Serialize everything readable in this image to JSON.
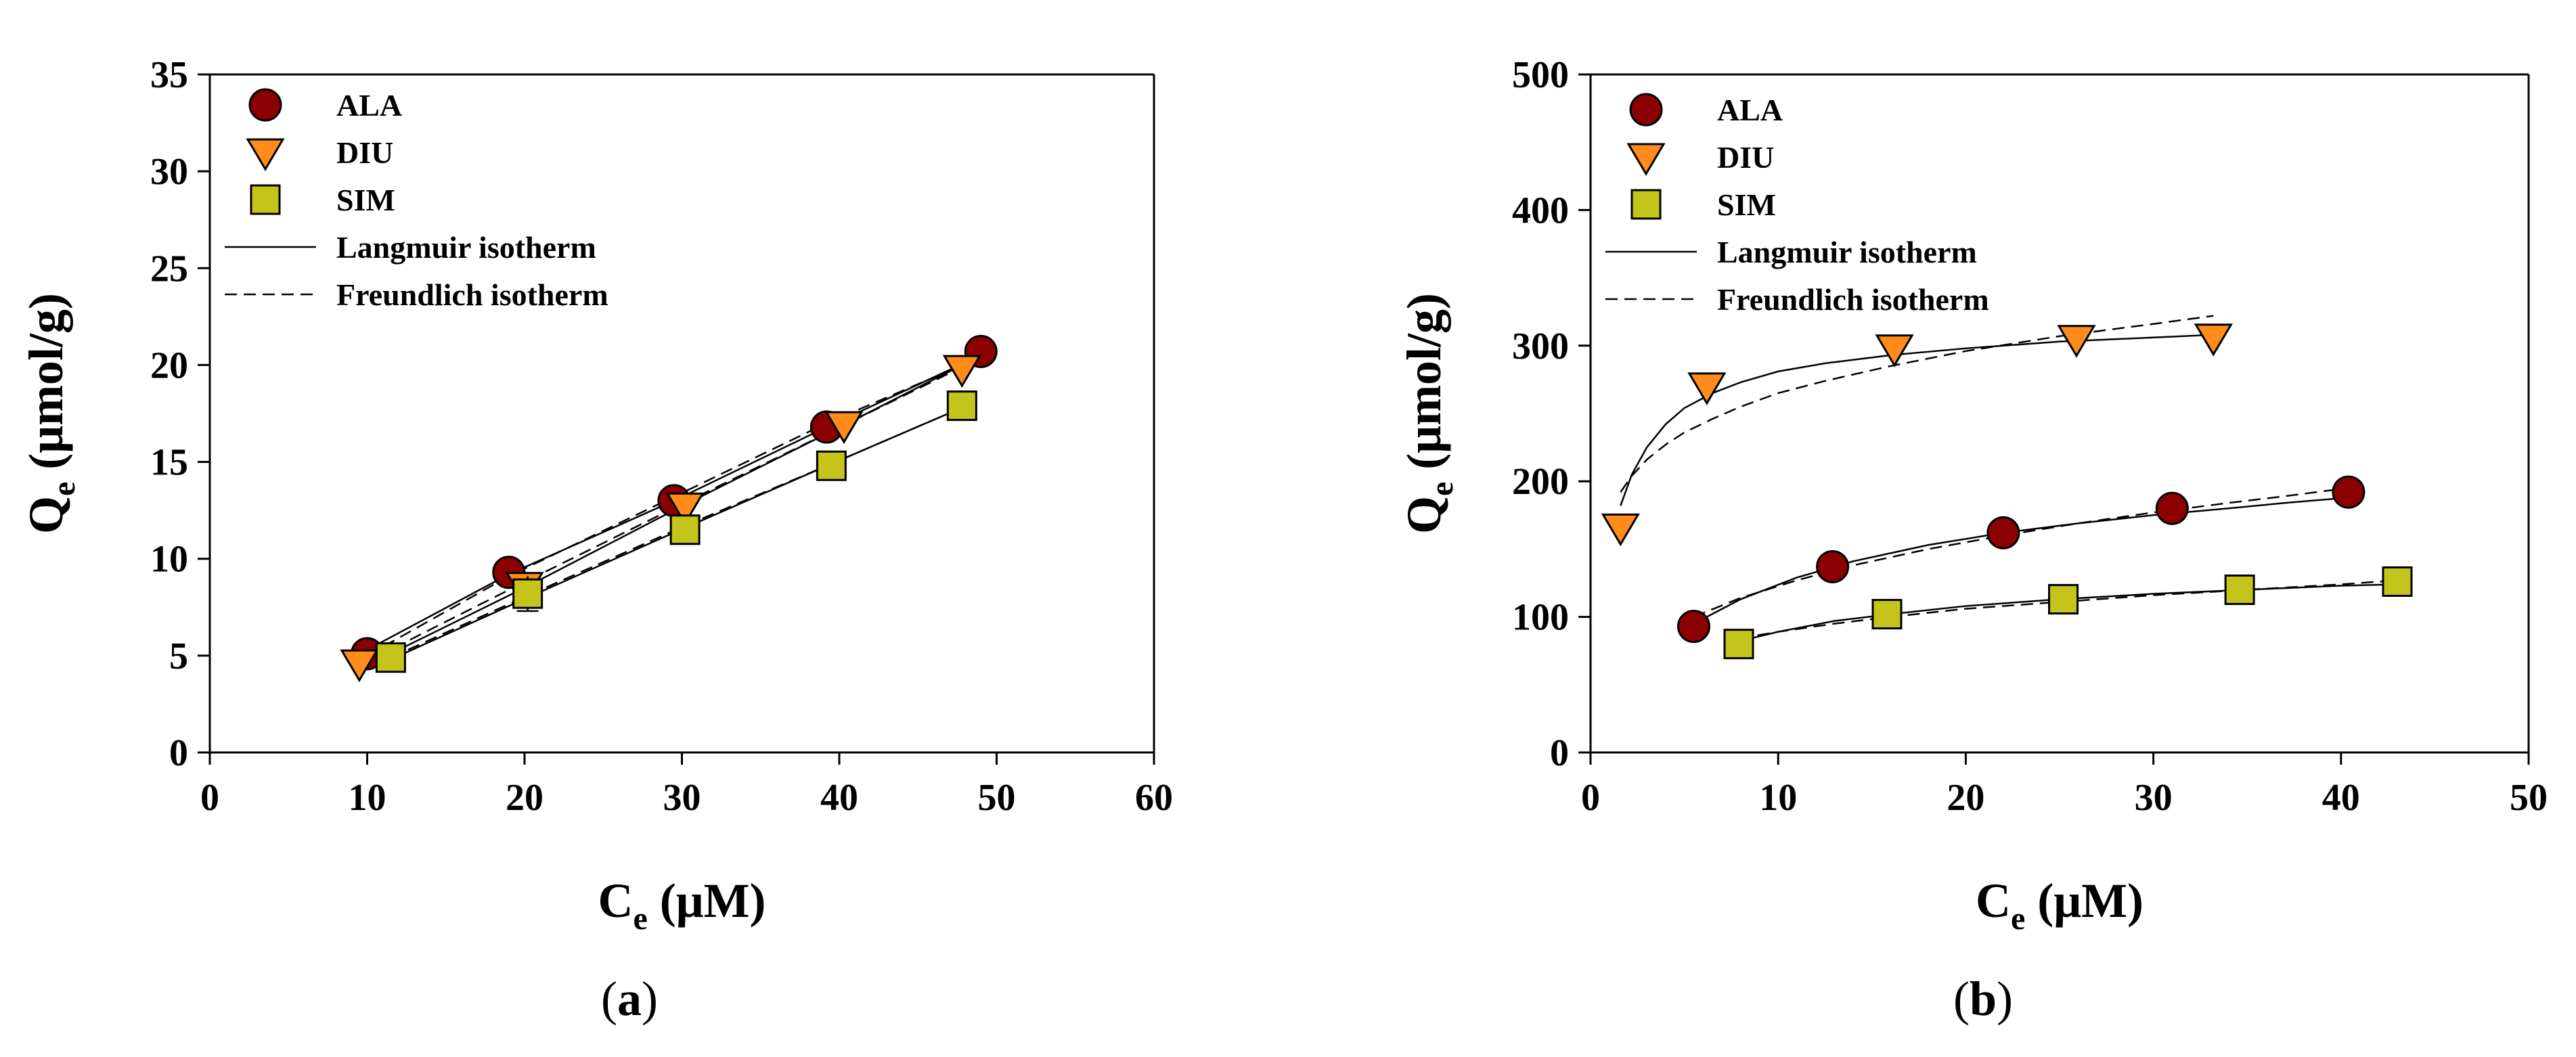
{
  "colors": {
    "ALA": "#8B0000",
    "DIU": "#FF8C1A",
    "SIM": "#C4C41A",
    "axis": "#000000"
  },
  "chart_data": [
    {
      "type": "scatter",
      "panel_label": "a",
      "xlabel": "C",
      "xlabel_sub": "e",
      "xlabel_unit": " (μM)",
      "ylabel": "Q",
      "ylabel_sub": "e",
      "ylabel_unit": " (μmol/g)",
      "xlim": [
        0,
        60
      ],
      "ylim": [
        0,
        35
      ],
      "xticks": [
        0,
        10,
        20,
        30,
        40,
        50,
        60
      ],
      "yticks": [
        0,
        5,
        10,
        15,
        20,
        25,
        30,
        35
      ],
      "grid": false,
      "legend_position": "top-left",
      "series": [
        {
          "name": "ALA",
          "marker": "circle",
          "x": [
            10,
            19,
            29.5,
            39.2,
            49
          ],
          "y": [
            5.1,
            9.3,
            13.0,
            16.8,
            20.7
          ],
          "langmuir_x": [
            10,
            19,
            29.5,
            39.2,
            49
          ],
          "langmuir_y": [
            5.3,
            9.2,
            13.0,
            16.8,
            20.5
          ],
          "freundlich_x": [
            10,
            19,
            29.5,
            39.2,
            49
          ],
          "freundlich_y": [
            5.0,
            9.1,
            13.2,
            17.0,
            20.4
          ]
        },
        {
          "name": "DIU",
          "marker": "triangle-down",
          "x": [
            9.5,
            20,
            30.2,
            40.3,
            47.8
          ],
          "y": [
            4.6,
            8.6,
            12.7,
            16.9,
            19.8
          ],
          "langmuir_x": [
            9.5,
            20,
            30.2,
            40.3,
            47.8
          ],
          "langmuir_y": [
            4.3,
            8.5,
            12.8,
            16.9,
            20.0
          ],
          "freundlich_x": [
            9.5,
            20,
            30.2,
            40.3,
            47.8
          ],
          "freundlich_y": [
            4.5,
            8.8,
            12.9,
            16.9,
            19.9
          ]
        },
        {
          "name": "SIM",
          "marker": "square",
          "x": [
            11.5,
            20.2,
            30.2,
            39.5,
            47.8
          ],
          "y": [
            4.9,
            8.2,
            11.5,
            14.8,
            17.9
          ],
          "error_y": [
            0.3,
            0.9,
            0.4,
            0.3,
            0.3
          ],
          "langmuir_x": [
            11.5,
            20.2,
            30.2,
            39.5,
            47.8
          ],
          "langmuir_y": [
            4.8,
            8.0,
            11.6,
            14.9,
            17.8
          ],
          "freundlich_x": [
            11.5,
            20.2,
            30.2,
            39.5,
            47.8
          ],
          "freundlich_y": [
            4.9,
            8.1,
            11.7,
            14.9,
            17.8
          ]
        }
      ]
    },
    {
      "type": "scatter",
      "panel_label": "b",
      "xlabel": "C",
      "xlabel_sub": "e",
      "xlabel_unit": " (μM)",
      "ylabel": "Q",
      "ylabel_sub": "e",
      "ylabel_unit": " (μmol/g)",
      "xlim": [
        0,
        50
      ],
      "ylim": [
        0,
        500
      ],
      "xticks": [
        0,
        10,
        20,
        30,
        40,
        50
      ],
      "yticks": [
        0,
        100,
        200,
        300,
        400,
        500
      ],
      "grid": false,
      "legend_position": "top-left",
      "series": [
        {
          "name": "ALA",
          "marker": "circle",
          "x": [
            5.5,
            12.9,
            22,
            31,
            40.4
          ],
          "y": [
            93,
            137,
            162,
            180,
            192
          ],
          "langmuir_x": [
            5.5,
            8,
            11,
            14,
            18,
            22,
            26,
            30,
            34,
            37,
            40.4
          ],
          "langmuir_y": [
            95,
            113,
            129,
            141,
            153,
            162,
            169,
            175,
            180,
            184,
            188
          ],
          "freundlich_x": [
            5.5,
            8,
            11,
            14,
            18,
            22,
            26,
            30,
            34,
            37,
            40.4
          ],
          "freundlich_y": [
            100,
            114,
            127,
            138,
            150,
            160,
            169,
            177,
            184,
            189,
            195
          ]
        },
        {
          "name": "DIU",
          "marker": "triangle-down",
          "x": [
            1.6,
            6.2,
            16.2,
            25.9,
            33.2
          ],
          "y": [
            166,
            270,
            298,
            305,
            306
          ],
          "langmuir_x": [
            1.6,
            2.2,
            3,
            4,
            5,
            6.5,
            8,
            10,
            12.5,
            16,
            20,
            25,
            30,
            33.2
          ],
          "langmuir_y": [
            182,
            205,
            225,
            242,
            254,
            265,
            273,
            281,
            287,
            293,
            298,
            303,
            306,
            308
          ],
          "freundlich_x": [
            1.6,
            2.2,
            3,
            4,
            5,
            6.5,
            8,
            10,
            12.5,
            16,
            20,
            25,
            30,
            33.2
          ],
          "freundlich_y": [
            192,
            204,
            216,
            227,
            236,
            246,
            255,
            265,
            274,
            285,
            296,
            307,
            316,
            322
          ]
        },
        {
          "name": "SIM",
          "marker": "square",
          "x": [
            7.9,
            15.8,
            25.2,
            34.6,
            43
          ],
          "y": [
            80,
            102,
            113,
            120,
            126
          ],
          "langmuir_x": [
            7.9,
            10,
            13,
            16,
            20,
            25,
            30,
            35,
            40,
            43
          ],
          "langmuir_y": [
            82,
            89,
            97,
            102,
            108,
            113,
            117,
            120,
            123,
            124
          ],
          "freundlich_x": [
            7.9,
            10,
            13,
            16,
            20,
            25,
            30,
            35,
            40,
            43
          ],
          "freundlich_y": [
            84,
            89,
            95,
            100,
            106,
            111,
            116,
            120,
            124,
            127
          ]
        }
      ]
    }
  ],
  "legend": {
    "items": [
      "ALA",
      "DIU",
      "SIM"
    ],
    "langmuir_label": "Langmuir isotherm",
    "freundlich_label": "Freundlich isotherm"
  }
}
